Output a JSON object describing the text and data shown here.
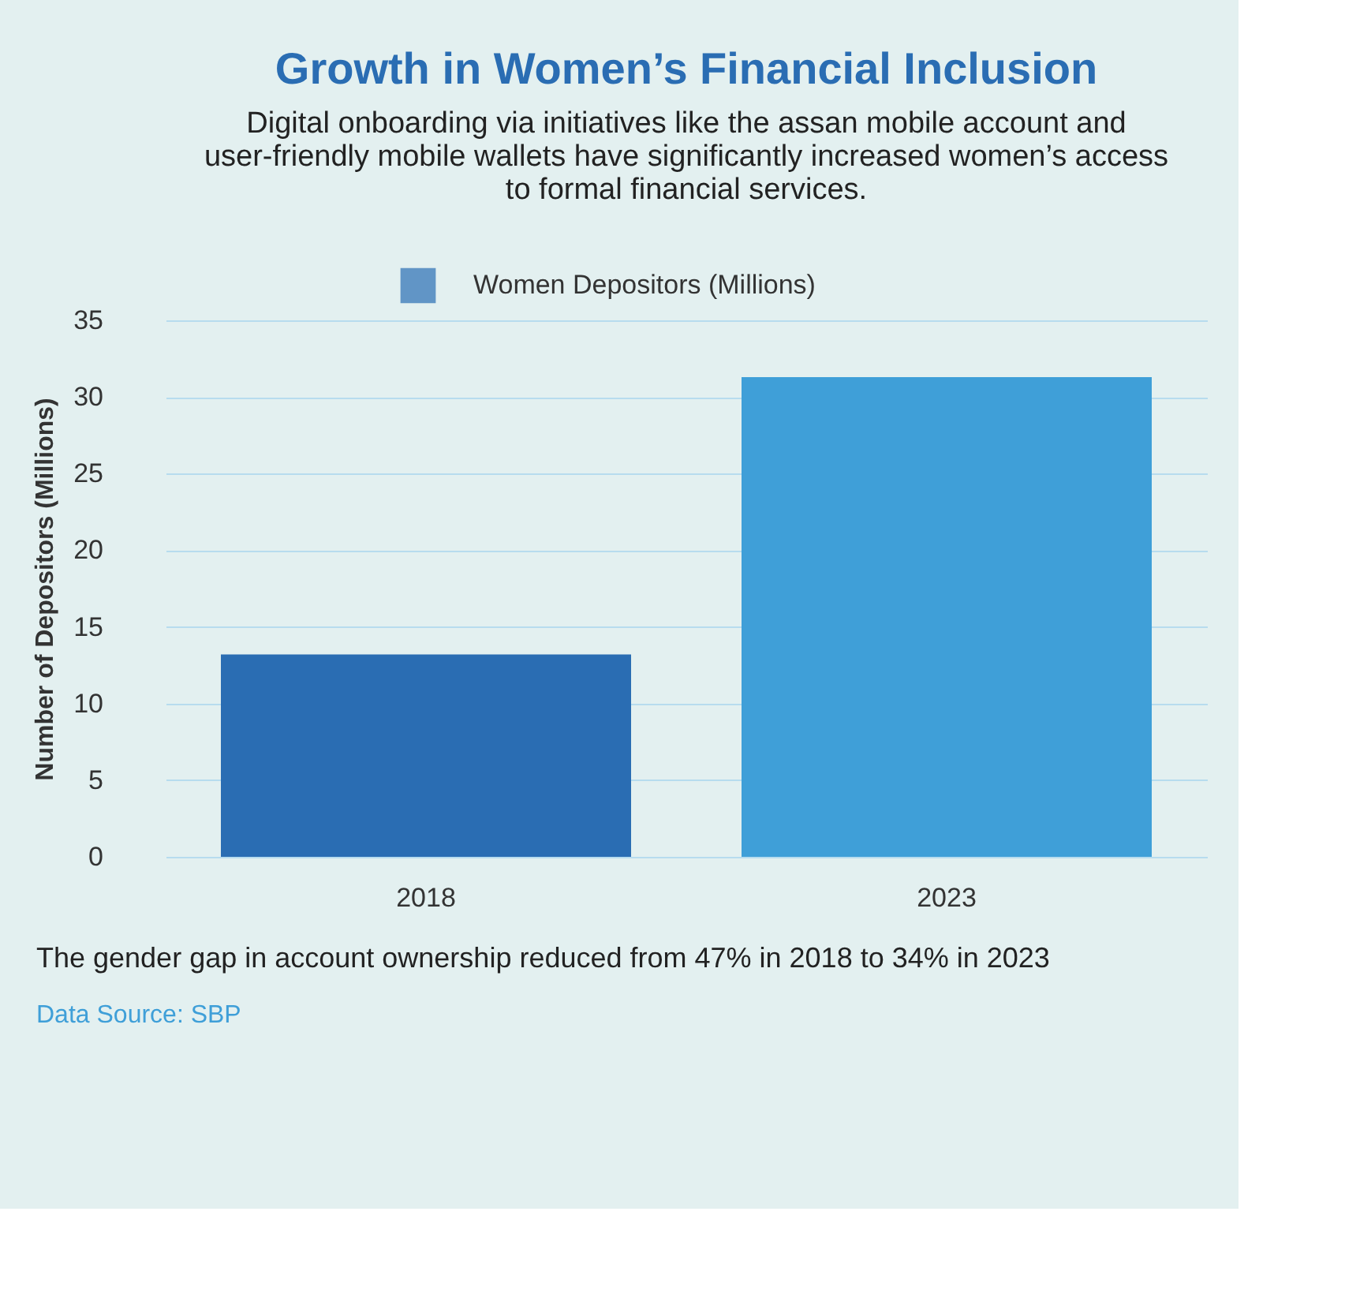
{
  "chart_data": {
    "type": "bar",
    "title": "Growth in Women’s Financial Inclusion",
    "subtitle": "Digital onboarding via initiatives like the assan mobile account and user-friendly mobile wallets have significantly increased women’s access to formal financial services.",
    "categories": [
      "2018",
      "2023"
    ],
    "series": [
      {
        "name": "Women Depositors (Millions)",
        "color": "#2a6db3",
        "colors": [
          "#2a6db3",
          "#3f9fd8"
        ],
        "values": [
          13.2,
          31.3
        ]
      }
    ],
    "ylabel": "Number of  Depositors (Millions)",
    "ylim": [
      0,
      35
    ],
    "yticks": [
      0,
      5,
      10,
      15,
      20,
      25,
      30,
      35
    ],
    "grid": "y",
    "legend": "top",
    "annotations": [
      "The gender gap in account ownership reduced from 47% in 2018 to 34% in 2023",
      "Data Source: SBP"
    ]
  }
}
